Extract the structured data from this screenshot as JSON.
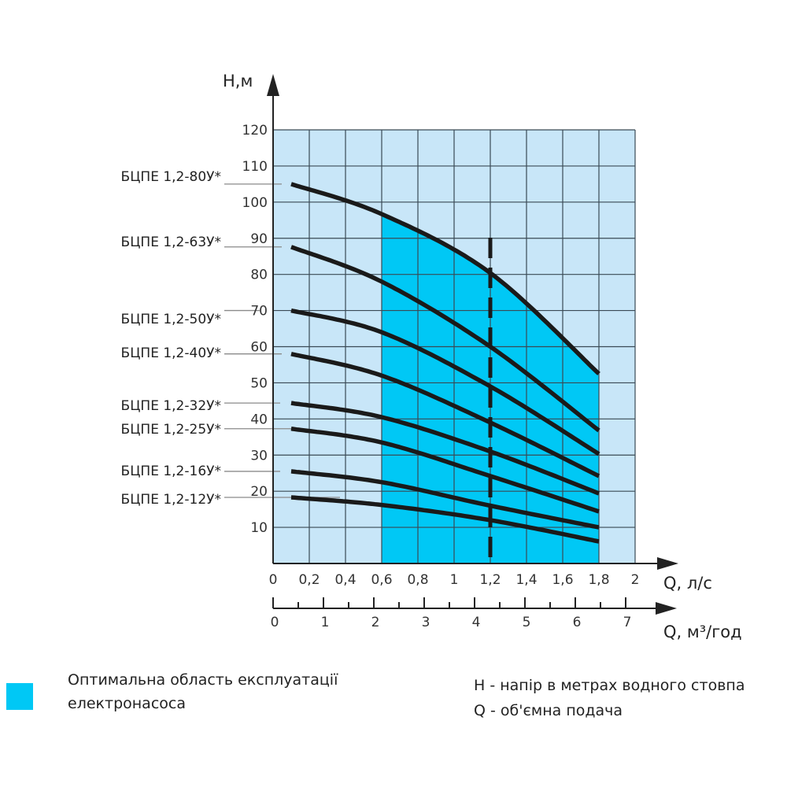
{
  "chart_data": {
    "type": "line",
    "title": "",
    "ylabel": "H,м",
    "xlabel": "Q, л/с",
    "xlabel_secondary": "Q, м³/год",
    "ylim": [
      0,
      120
    ],
    "xlim": [
      0,
      2
    ],
    "grid": true,
    "y_ticks": [
      10,
      20,
      30,
      40,
      50,
      60,
      70,
      80,
      90,
      100,
      110,
      120
    ],
    "x_ticks": [
      "0",
      "0,2",
      "0,4",
      "0,6",
      "0,8",
      "1",
      "1,2",
      "1,4",
      "1,6",
      "1,8",
      "2"
    ],
    "x_ticks_values": [
      0,
      0.2,
      0.4,
      0.6,
      0.8,
      1.0,
      1.2,
      1.4,
      1.6,
      1.8,
      2.0
    ],
    "x_secondary_ticks": [
      "0",
      "1",
      "2",
      "3",
      "4",
      "5",
      "6",
      "7"
    ],
    "optimal_region": {
      "q_from": 0.6,
      "q_to": 1.8,
      "label": "Оптимальна область експлуатації електронасоса",
      "color": "#00c8f5"
    },
    "reference_line": {
      "q": 1.2,
      "style": "dashed"
    },
    "x": [
      0.1,
      0.6,
      1.2,
      1.8
    ],
    "series": [
      {
        "name": "БЦПЕ 1,2-80У*",
        "values": [
          105,
          96.7,
          80.4,
          52.5
        ]
      },
      {
        "name": "БЦПЕ 1,2-63У*",
        "values": [
          87.6,
          78,
          60,
          36.8
        ]
      },
      {
        "name": "БЦПЕ 1,2-50У*",
        "values": [
          70,
          64,
          49,
          30.3
        ]
      },
      {
        "name": "БЦПЕ 1,2-40У*",
        "values": [
          58,
          52,
          39,
          24.2
        ]
      },
      {
        "name": "БЦПЕ 1,2-32У*",
        "values": [
          44.4,
          40.5,
          31,
          19.4
        ]
      },
      {
        "name": "БЦПЕ 1,2-25У*",
        "values": [
          37.3,
          33.5,
          24.2,
          14.4
        ]
      },
      {
        "name": "БЦПЕ 1,2-16У*",
        "values": [
          25.5,
          22.5,
          16,
          10
        ]
      },
      {
        "name": "БЦПЕ 1,2-12У*",
        "values": [
          18.3,
          16.2,
          12,
          6.1
        ]
      }
    ],
    "colors": {
      "grid_bg": "#c8e6f8",
      "optimal": "#00c8f5",
      "curve": "#1a1a1a",
      "grid_line": "#3a4a55"
    }
  },
  "legend": {
    "optimal_label": "Оптимальна область експлуатації електронасоса"
  },
  "notes": {
    "h_note": "H - напір в метрах водного стовпа",
    "q_note": "Q - об'ємна подача"
  }
}
